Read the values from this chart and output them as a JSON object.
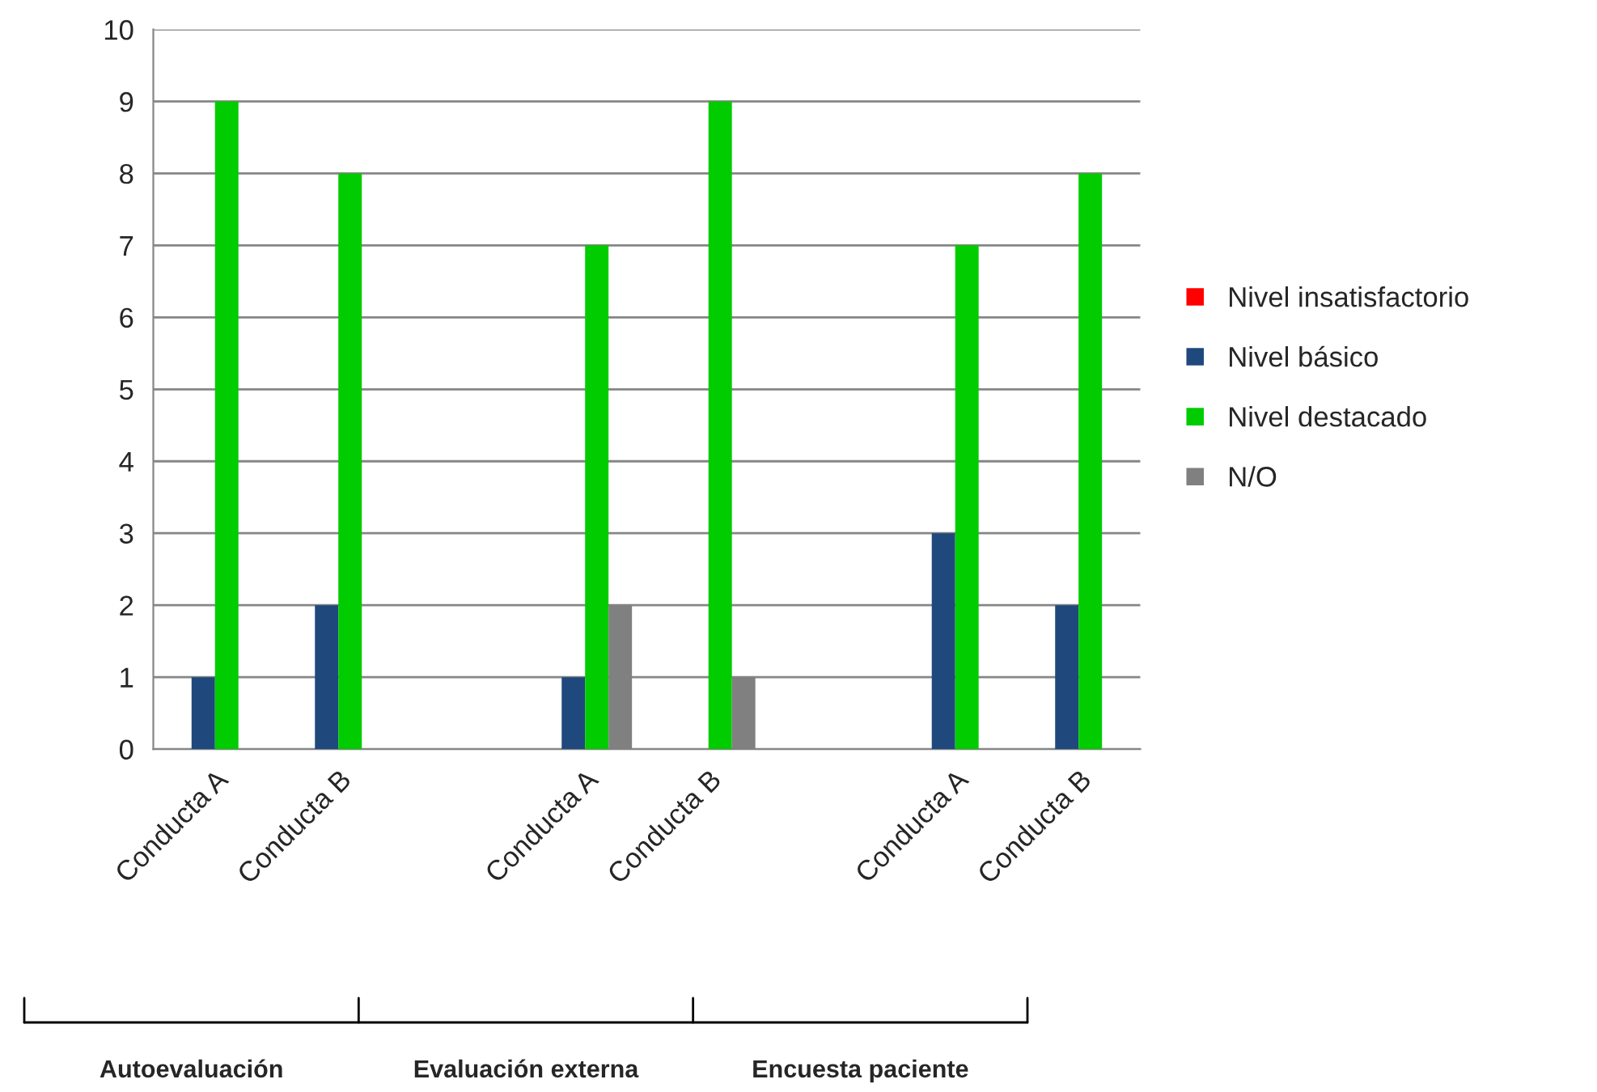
{
  "chart_data": {
    "type": "bar",
    "categories": [
      "Conducta A",
      "Conducta B",
      null,
      "Conducta A",
      "Conducta B",
      null,
      "Conducta A",
      "Conducta B"
    ],
    "series": [
      {
        "name": "Nivel insatisfactorio",
        "color": "#ff0000",
        "values": [
          0,
          0,
          null,
          0,
          0,
          null,
          0,
          0
        ]
      },
      {
        "name": "Nivel básico",
        "color": "#1f497d",
        "values": [
          1,
          2,
          null,
          1,
          0,
          null,
          3,
          2
        ]
      },
      {
        "name": "Nivel destacado",
        "color": "#00cc00",
        "values": [
          9,
          8,
          null,
          7,
          9,
          null,
          7,
          8
        ]
      },
      {
        "name": "N/O",
        "color": "#808080",
        "values": [
          0,
          0,
          null,
          2,
          1,
          null,
          0,
          0
        ]
      }
    ],
    "ylim": [
      0,
      10
    ],
    "yticks": [
      0,
      1,
      2,
      3,
      4,
      5,
      6,
      7,
      8,
      9,
      10
    ],
    "grid": "y",
    "legend": "right",
    "annotations": [
      "Autoevaluación",
      "Evaluación externa",
      "Encuesta paciente"
    ]
  }
}
